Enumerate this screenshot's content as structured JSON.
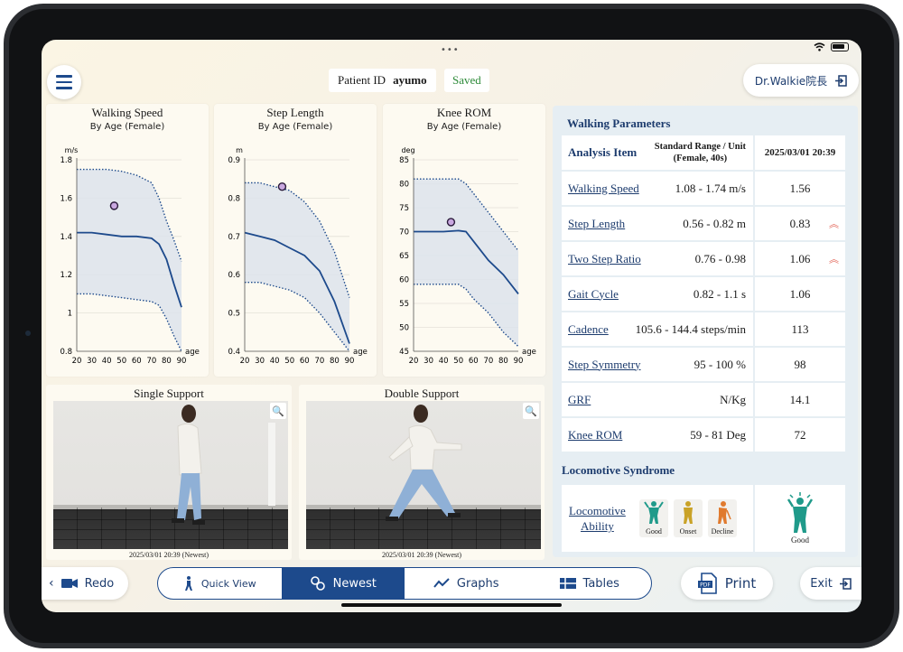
{
  "header": {
    "patient_label": "Patient ID",
    "patient_id": "ayumo",
    "saved_label": "Saved",
    "doctor_label": "Dr.Walkie院長"
  },
  "charts": {
    "walking_speed": {
      "title": "Walking Speed",
      "subtitle": "By Age (Female)",
      "unit": "m/s",
      "xlabel": "age"
    },
    "step_length": {
      "title": "Step Length",
      "subtitle": "By Age (Female)",
      "unit": "m",
      "xlabel": "age"
    },
    "knee_rom": {
      "title": "Knee ROM",
      "subtitle": "By Age (Female)",
      "unit": "deg",
      "xlabel": "age"
    }
  },
  "chart_data": [
    {
      "type": "line",
      "title": "Walking Speed",
      "subtitle": "By Age (Female)",
      "xlabel": "age",
      "ylabel": "m/s",
      "xlim": [
        20,
        90
      ],
      "ylim": [
        0.8,
        1.8
      ],
      "xticks": [
        "20",
        "30",
        "40",
        "50",
        "60",
        "70",
        "80",
        "90"
      ],
      "yticks": [
        "0.8",
        "1",
        "1.2",
        "1.4",
        "1.6",
        "1.8"
      ],
      "x": [
        20,
        30,
        40,
        50,
        60,
        70,
        75,
        80,
        85,
        90
      ],
      "upper": [
        1.75,
        1.75,
        1.75,
        1.74,
        1.72,
        1.68,
        1.6,
        1.48,
        1.38,
        1.27
      ],
      "median": [
        1.42,
        1.42,
        1.41,
        1.4,
        1.4,
        1.39,
        1.36,
        1.28,
        1.15,
        1.03
      ],
      "lower": [
        1.1,
        1.1,
        1.09,
        1.08,
        1.07,
        1.06,
        1.04,
        0.97,
        0.88,
        0.8
      ],
      "patient": {
        "x": 45,
        "y": 1.56
      }
    },
    {
      "type": "line",
      "title": "Step Length",
      "subtitle": "By Age (Female)",
      "xlabel": "age",
      "ylabel": "m",
      "xlim": [
        20,
        90
      ],
      "ylim": [
        0.4,
        0.9
      ],
      "xticks": [
        "20",
        "30",
        "40",
        "50",
        "60",
        "70",
        "80",
        "90"
      ],
      "yticks": [
        "0.4",
        "0.5",
        "0.6",
        "0.7",
        "0.8",
        "0.9"
      ],
      "x": [
        20,
        30,
        40,
        50,
        60,
        70,
        80,
        90
      ],
      "upper": [
        0.84,
        0.84,
        0.83,
        0.82,
        0.79,
        0.74,
        0.66,
        0.54
      ],
      "median": [
        0.71,
        0.7,
        0.69,
        0.67,
        0.65,
        0.61,
        0.53,
        0.42
      ],
      "lower": [
        0.58,
        0.58,
        0.57,
        0.56,
        0.54,
        0.5,
        0.45,
        0.4
      ],
      "patient": {
        "x": 45,
        "y": 0.83
      }
    },
    {
      "type": "line",
      "title": "Knee ROM",
      "subtitle": "By Age (Female)",
      "xlabel": "age",
      "ylabel": "deg",
      "xlim": [
        20,
        90
      ],
      "ylim": [
        45,
        85
      ],
      "xticks": [
        "20",
        "30",
        "40",
        "50",
        "60",
        "70",
        "80",
        "90"
      ],
      "yticks": [
        "45",
        "50",
        "55",
        "60",
        "65",
        "70",
        "75",
        "80",
        "85"
      ],
      "x": [
        20,
        30,
        40,
        50,
        55,
        60,
        70,
        80,
        90
      ],
      "upper": [
        81,
        81,
        81,
        81,
        80,
        78,
        74,
        70,
        66
      ],
      "median": [
        70,
        70,
        70,
        70.2,
        70,
        68,
        64,
        61,
        57
      ],
      "lower": [
        59,
        59,
        59,
        59,
        58,
        56,
        53,
        49,
        46
      ],
      "patient": {
        "x": 45,
        "y": 72
      }
    }
  ],
  "videos": [
    {
      "title": "Single Support",
      "date": "2025/03/01 20:39 (Newest)"
    },
    {
      "title": "Double Support",
      "date": "2025/03/01 20:39 (Newest)"
    }
  ],
  "params": {
    "title": "Walking Parameters",
    "col_item": "Analysis Item",
    "col_std_line1": "Standard Range / Unit",
    "col_std_line2": "(Female, 40s)",
    "col_date": "2025/03/01 20:39",
    "rows": [
      {
        "name": "Walking Speed",
        "range": "1.08 - 1.74 m/s",
        "value": "1.56"
      },
      {
        "name": "Step Length",
        "range": "0.56 - 0.82 m",
        "value": "0.83"
      },
      {
        "name": "Two Step Ratio",
        "range": "0.76 - 0.98",
        "value": "1.06"
      },
      {
        "name": "Gait Cycle",
        "range": "0.82 - 1.1 s",
        "value": "1.06"
      },
      {
        "name": "Cadence",
        "range": "105.6 - 144.4 steps/min",
        "value": "113"
      },
      {
        "name": "Step Symmetry",
        "range": "95 - 100 %",
        "value": "98"
      },
      {
        "name": "GRF",
        "range": "N/Kg",
        "value": "14.1"
      },
      {
        "name": "Knee ROM",
        "range": "59 - 81 Deg",
        "value": "72"
      }
    ]
  },
  "locomotive": {
    "title": "Locomotive Syndrome",
    "label_line1": "Locomotive",
    "label_line2": "Ability",
    "stages": [
      {
        "label": "Good",
        "color": "#1f9a8a"
      },
      {
        "label": "Onset",
        "color": "#c9a227"
      },
      {
        "label": "Decline",
        "color": "#e07a2e"
      }
    ],
    "result": "Good",
    "result_color": "#1f9a8a"
  },
  "nav": {
    "redo": "Redo",
    "quick_view": "Quick View",
    "newest": "Newest",
    "graphs": "Graphs",
    "tables": "Tables",
    "print": "Print",
    "pdf": "PDF",
    "exit": "Exit"
  },
  "colors": {
    "primary": "#1d4a8c",
    "band": "#dde3ec",
    "alert": "#e0584a"
  }
}
